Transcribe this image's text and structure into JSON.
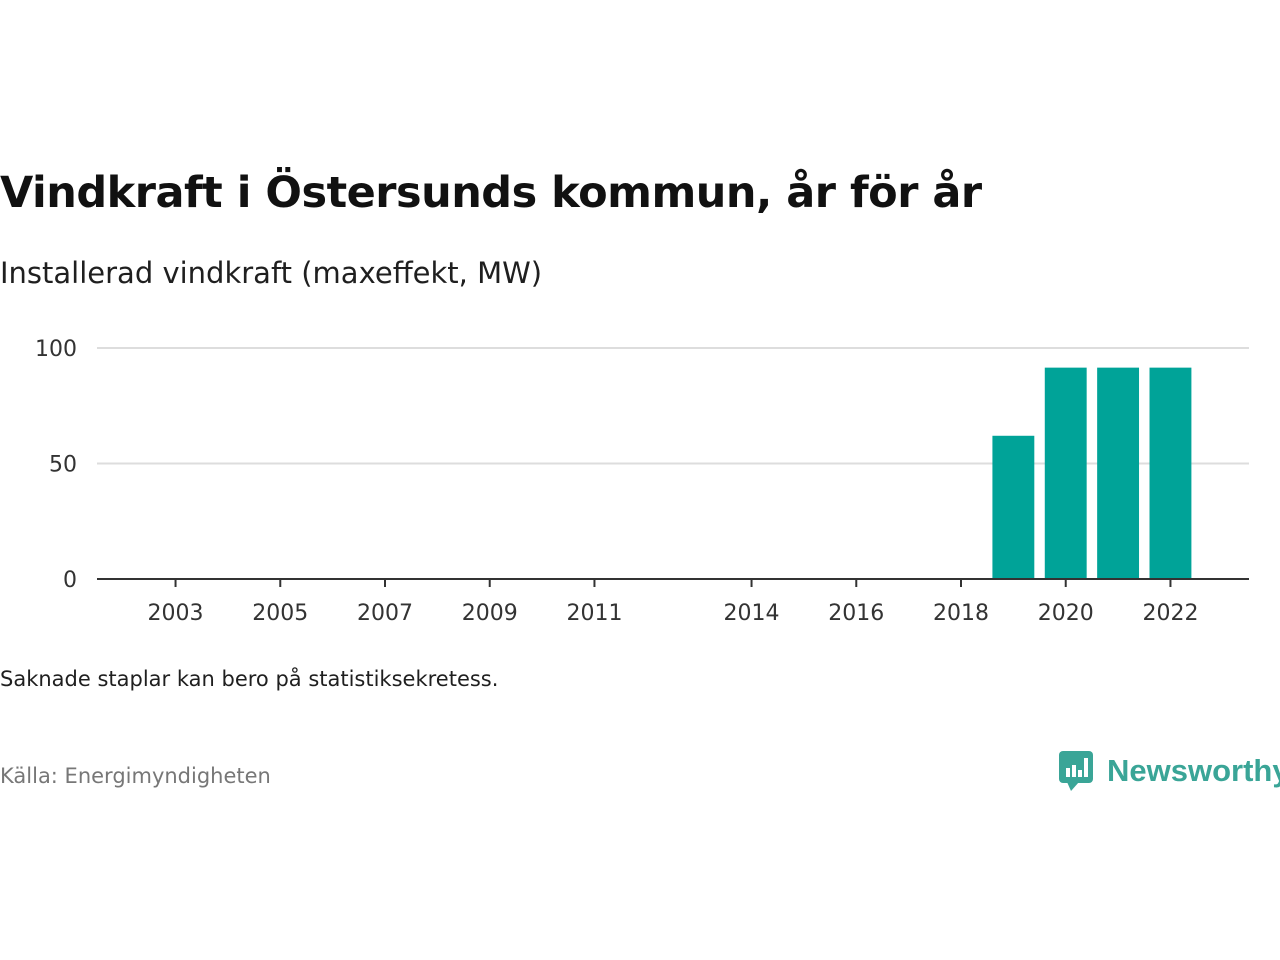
{
  "title": "Vindkraft i Östersunds kommun, år för år",
  "subtitle": "Installerad vindkraft (maxeffekt, MW)",
  "note": "Saknade staplar kan bero på statistiksekretess.",
  "source": "Källa: Energimyndigheten",
  "brand": "Newsworthy",
  "colors": {
    "bar": "#00a398",
    "axis": "#333333",
    "grid": "#dddddd",
    "brand": "#3aa597"
  },
  "chart_data": {
    "type": "bar",
    "x_ticks": [
      2003,
      2005,
      2007,
      2009,
      2011,
      2014,
      2016,
      2018,
      2020,
      2022
    ],
    "y_ticks": [
      0,
      50,
      100
    ],
    "xlim": [
      2001.5,
      2023.5
    ],
    "ylim": [
      0,
      100
    ],
    "categories": [
      2019,
      2020,
      2021,
      2022
    ],
    "values": [
      62,
      91.5,
      91.5,
      91.5
    ],
    "grid": true
  }
}
